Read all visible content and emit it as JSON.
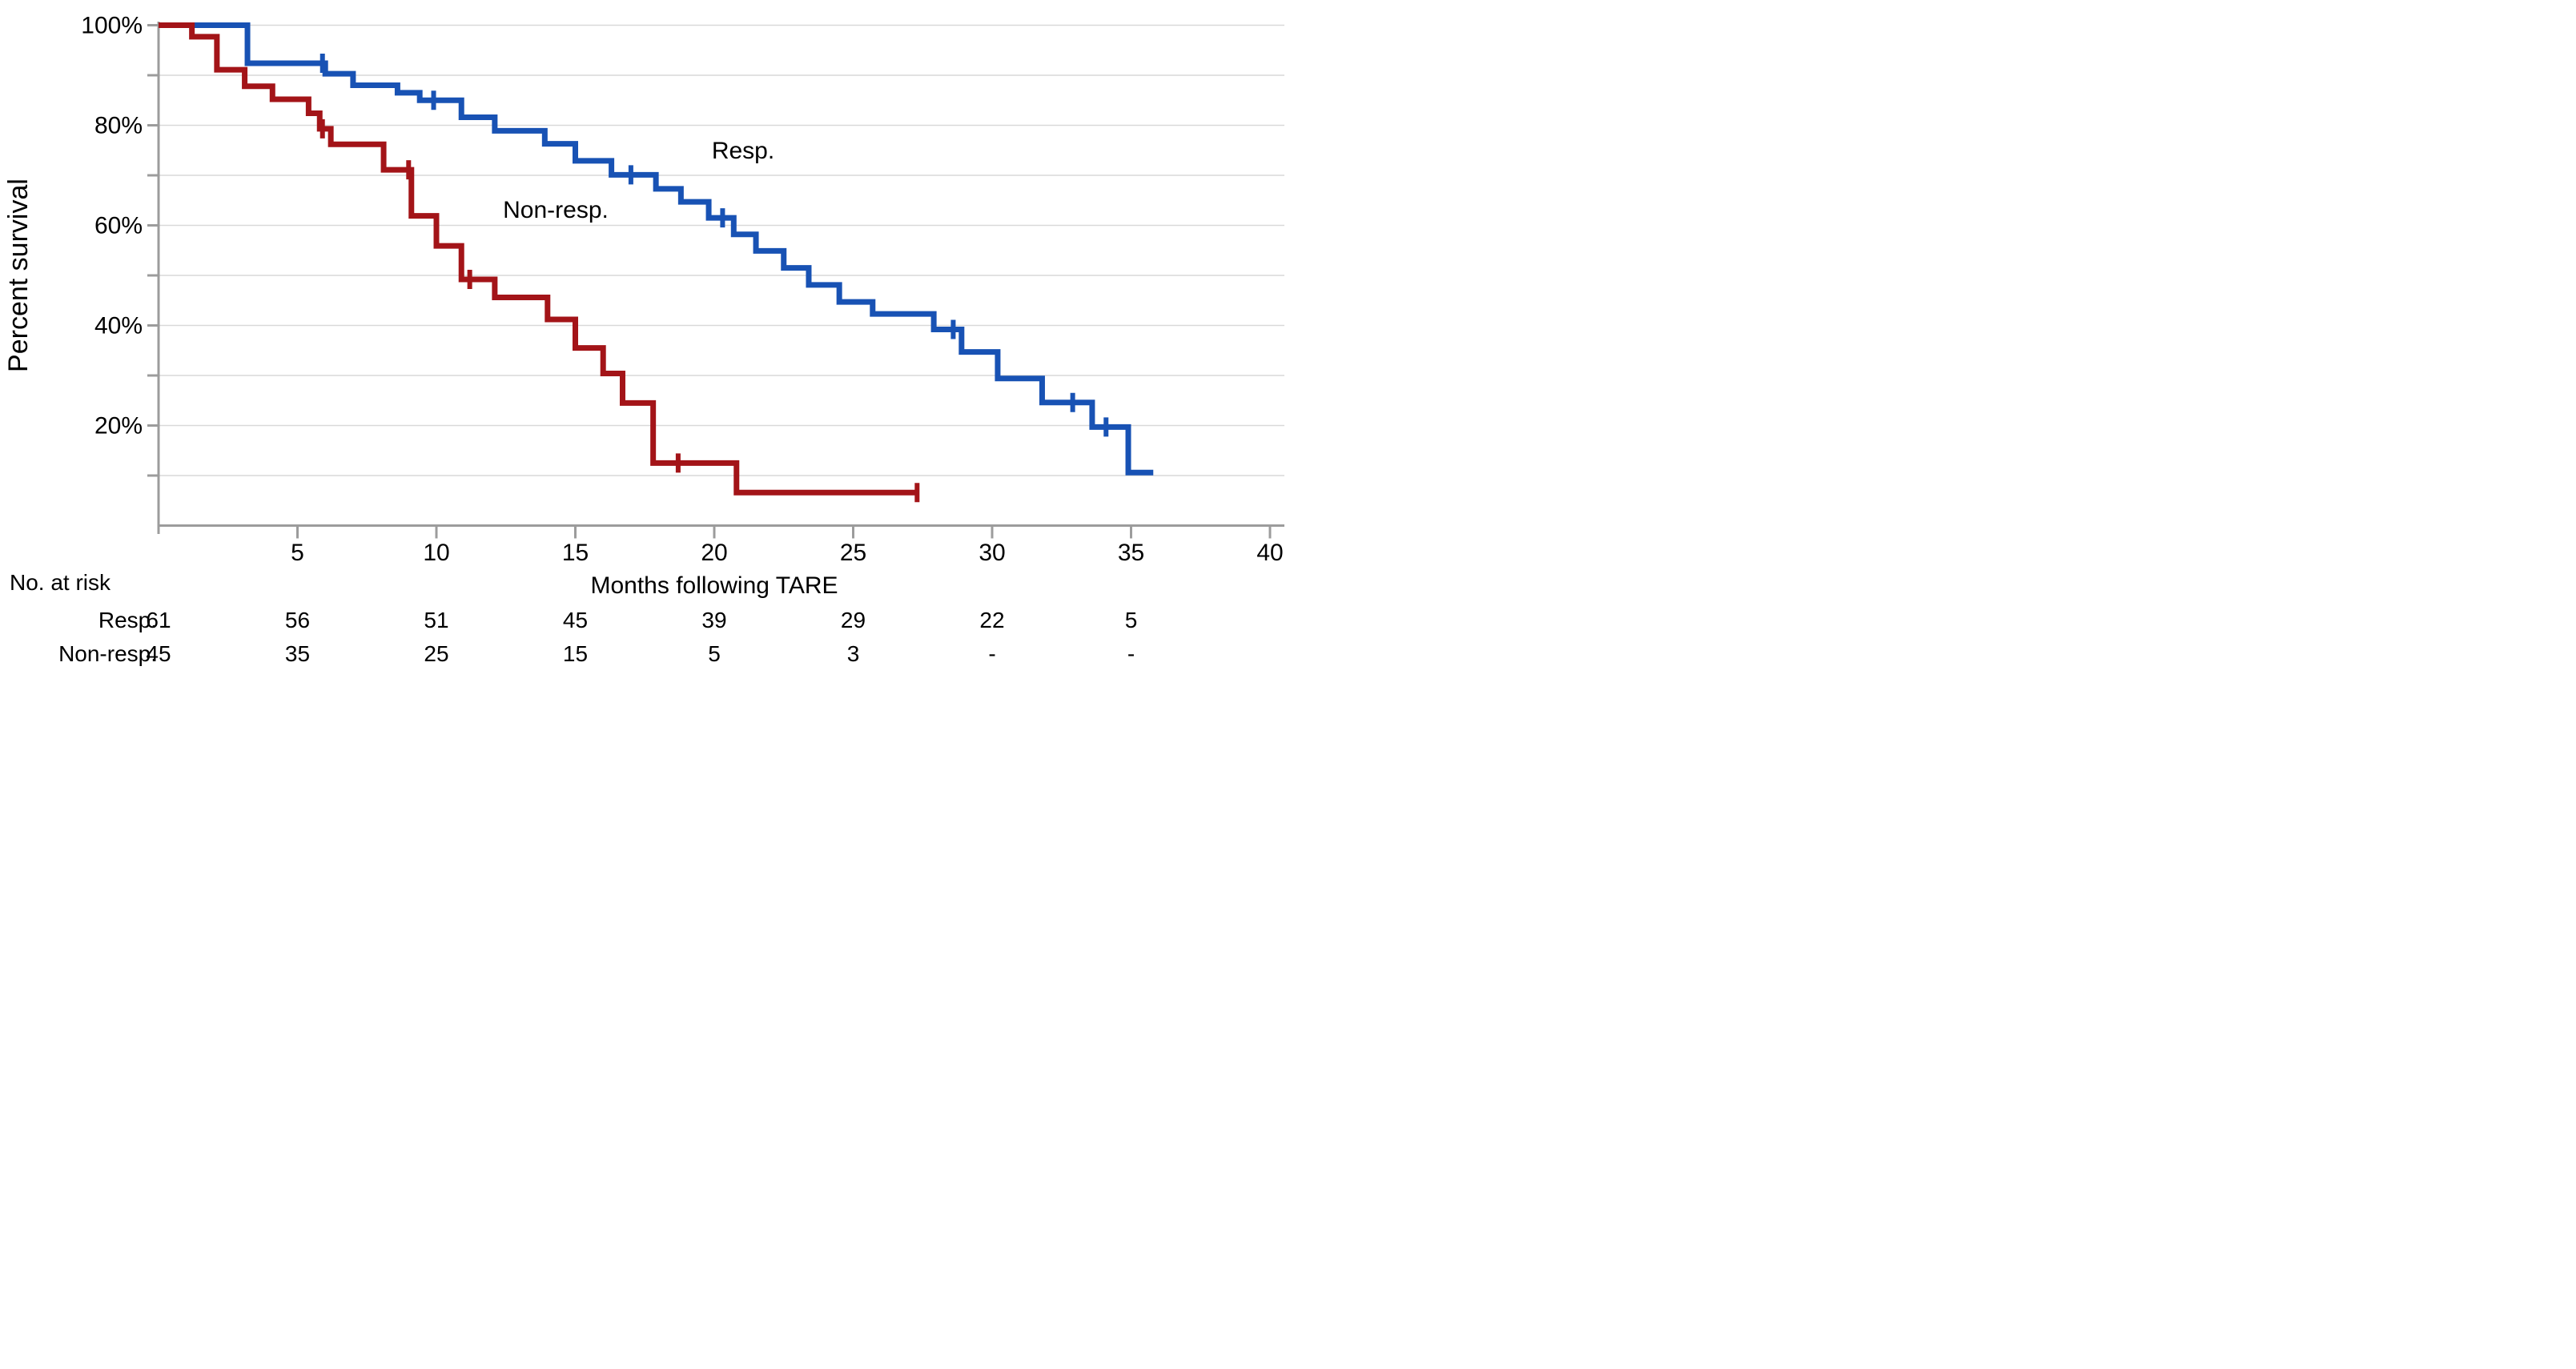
{
  "chart_data": {
    "type": "line",
    "subtype": "kaplan-meier-step-curves",
    "title": "",
    "xlabel": "Months following TARE",
    "ylabel": "Percent survival",
    "xlim": [
      0,
      40
    ],
    "ylim": [
      0,
      100
    ],
    "x_ticks": [
      5,
      10,
      15,
      20,
      25,
      30,
      35,
      40
    ],
    "y_ticks_labeled": [
      {
        "pct": 100,
        "label": "100%"
      },
      {
        "pct": 80,
        "label": "80%"
      },
      {
        "pct": 60,
        "label": "60%"
      },
      {
        "pct": 40,
        "label": "40%"
      },
      {
        "pct": 20,
        "label": "20%"
      }
    ],
    "y_gridlines_pct": [
      100,
      90,
      80,
      70,
      60,
      50,
      40,
      30,
      20,
      10
    ],
    "grid": "horizontal-only",
    "legend": "inline-curve-labels",
    "series": [
      {
        "name": "Resp.",
        "color": "#1852B4",
        "label_center": {
          "month": 21.0,
          "pct": 75.0
        },
        "steps": [
          [
            0,
            100
          ],
          [
            3.2,
            92.4
          ],
          [
            6.0,
            90.3
          ],
          [
            7.0,
            88.0
          ],
          [
            8.6,
            86.5
          ],
          [
            9.4,
            85.0
          ],
          [
            10.9,
            81.6
          ],
          [
            12.1,
            78.9
          ],
          [
            13.9,
            76.3
          ],
          [
            15.0,
            72.9
          ],
          [
            16.3,
            70.1
          ],
          [
            17.9,
            67.3
          ],
          [
            18.8,
            64.7
          ],
          [
            19.8,
            61.5
          ],
          [
            20.7,
            58.2
          ],
          [
            21.5,
            54.9
          ],
          [
            22.5,
            51.5
          ],
          [
            23.4,
            48.1
          ],
          [
            24.5,
            44.7
          ],
          [
            25.7,
            42.3
          ],
          [
            27.9,
            39.2
          ],
          [
            28.9,
            34.7
          ],
          [
            30.2,
            29.4
          ],
          [
            31.8,
            24.6
          ],
          [
            33.6,
            19.7
          ],
          [
            34.9,
            10.6
          ]
        ],
        "end_month": 35.8,
        "censor_marks": [
          [
            5.9,
            92.4
          ],
          [
            9.9,
            85.0
          ],
          [
            17.0,
            70.1
          ],
          [
            20.3,
            61.5
          ],
          [
            28.6,
            39.2
          ],
          [
            32.9,
            24.6
          ],
          [
            34.1,
            19.7
          ]
        ]
      },
      {
        "name": "Non-resp.",
        "color": "#A31418",
        "label_center": {
          "month": 14.3,
          "pct": 63.2
        },
        "steps": [
          [
            0,
            100
          ],
          [
            1.2,
            97.7
          ],
          [
            2.1,
            91.1
          ],
          [
            3.1,
            87.8
          ],
          [
            4.1,
            85.2
          ],
          [
            5.4,
            82.4
          ],
          [
            5.8,
            79.3
          ],
          [
            6.2,
            76.2
          ],
          [
            8.1,
            71.1
          ],
          [
            9.1,
            61.9
          ],
          [
            10.0,
            55.9
          ],
          [
            10.9,
            49.2
          ],
          [
            12.1,
            45.6
          ],
          [
            14.0,
            41.2
          ],
          [
            15.0,
            35.5
          ],
          [
            16.0,
            30.4
          ],
          [
            16.7,
            24.5
          ],
          [
            17.8,
            12.5
          ],
          [
            20.8,
            6.6
          ]
        ],
        "end_month": 27.3,
        "censor_marks": [
          [
            5.9,
            79.3
          ],
          [
            9.0,
            71.1
          ],
          [
            11.2,
            49.2
          ],
          [
            18.7,
            12.5
          ],
          [
            27.3,
            6.6
          ]
        ]
      }
    ],
    "risk_table": {
      "header": "No. at risk",
      "months": [
        0,
        5,
        10,
        15,
        20,
        25,
        30,
        35
      ],
      "rows": [
        {
          "label": "Resp.",
          "values": [
            "61",
            "56",
            "51",
            "45",
            "39",
            "29",
            "22",
            "5"
          ]
        },
        {
          "label": "Non-resp.",
          "values": [
            "45",
            "35",
            "25",
            "15",
            "5",
            "3",
            "-",
            "-"
          ]
        }
      ]
    },
    "layout_colors": {
      "grid": "#D9D9D9",
      "axis": "#9C9C9C",
      "text": "#000000",
      "background": "#FFFFFF"
    }
  }
}
